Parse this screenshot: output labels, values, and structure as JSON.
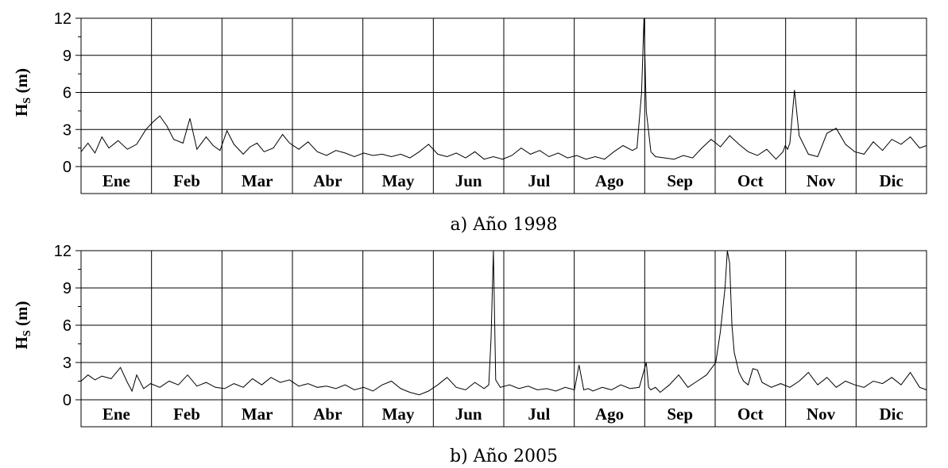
{
  "chart_data": [
    {
      "type": "line",
      "caption": "a) Año 1998",
      "ylabel_main": "H",
      "ylabel_sub": "S",
      "ylabel_unit": " (m)",
      "ylim": [
        0,
        12
      ],
      "yticks": [
        "0",
        "3",
        "6",
        "9",
        "12"
      ],
      "yminor": [
        1.5,
        4.5,
        7.5,
        10.5
      ],
      "grid": true,
      "categories": [
        "Ene",
        "Feb",
        "Mar",
        "Abr",
        "May",
        "Jun",
        "Jul",
        "Ago",
        "Sep",
        "Oct",
        "Nov",
        "Dic"
      ],
      "series": [
        {
          "x": [
            0,
            3,
            6,
            9,
            12,
            16,
            20,
            24,
            28,
            31,
            34,
            37,
            40,
            44,
            47,
            50,
            54,
            57,
            60,
            63,
            66,
            70,
            73,
            76,
            79,
            83,
            87,
            90,
            94,
            98,
            102,
            106,
            110,
            114,
            118,
            122,
            126,
            130,
            134,
            138,
            142,
            146,
            150,
            154,
            158,
            162,
            166,
            170,
            174,
            178,
            182,
            186,
            190,
            194,
            198,
            202,
            206,
            210,
            214,
            218,
            222,
            226,
            230,
            234,
            238,
            240,
            242,
            243,
            244,
            246,
            248,
            252,
            256,
            260,
            264,
            268,
            272,
            276,
            280,
            284,
            288,
            292,
            296,
            300,
            303,
            304,
            305,
            306,
            308,
            310,
            314,
            318,
            322,
            326,
            330,
            334,
            338,
            342,
            346,
            350,
            354,
            358,
            362,
            365
          ],
          "y": [
            1.2,
            1.9,
            1.1,
            2.4,
            1.5,
            2.1,
            1.4,
            1.8,
            3.0,
            3.6,
            4.1,
            3.3,
            2.2,
            1.9,
            3.9,
            1.4,
            2.4,
            1.7,
            1.3,
            2.9,
            1.8,
            1.0,
            1.6,
            1.9,
            1.2,
            1.5,
            2.6,
            1.9,
            1.4,
            2.0,
            1.2,
            0.9,
            1.3,
            1.1,
            0.8,
            1.1,
            0.9,
            1.0,
            0.8,
            1.0,
            0.7,
            1.2,
            1.8,
            1.0,
            0.8,
            1.1,
            0.7,
            1.2,
            0.6,
            0.8,
            0.6,
            0.9,
            1.5,
            1.0,
            1.3,
            0.8,
            1.1,
            0.7,
            0.9,
            0.6,
            0.8,
            0.6,
            1.2,
            1.7,
            1.3,
            1.5,
            6.0,
            12.0,
            4.5,
            1.2,
            0.8,
            0.7,
            0.6,
            0.9,
            0.7,
            1.5,
            2.2,
            1.6,
            2.5,
            1.8,
            1.2,
            0.9,
            1.4,
            0.6,
            1.2,
            1.7,
            1.4,
            1.9,
            6.2,
            2.5,
            1.0,
            0.8,
            2.7,
            3.1,
            1.8,
            1.2,
            1.0,
            2.0,
            1.3,
            2.2,
            1.8,
            2.4,
            1.5,
            1.7
          ]
        }
      ]
    },
    {
      "type": "line",
      "caption": "b) Año 2005",
      "ylabel_main": "H",
      "ylabel_sub": "S",
      "ylabel_unit": " (m)",
      "ylim": [
        0,
        12
      ],
      "yticks": [
        "0",
        "3",
        "6",
        "9",
        "12"
      ],
      "yminor": [
        1.5,
        4.5,
        7.5,
        10.5
      ],
      "grid": true,
      "categories": [
        "Ene",
        "Feb",
        "Mar",
        "Abr",
        "May",
        "Jun",
        "Jul",
        "Ago",
        "Sep",
        "Oct",
        "Nov",
        "Dic"
      ],
      "series": [
        {
          "x": [
            0,
            3,
            6,
            9,
            13,
            17,
            20,
            22,
            24,
            27,
            30,
            34,
            38,
            42,
            46,
            50,
            54,
            58,
            62,
            66,
            70,
            74,
            78,
            82,
            86,
            90,
            94,
            98,
            102,
            106,
            110,
            114,
            118,
            122,
            126,
            130,
            134,
            138,
            142,
            146,
            150,
            154,
            158,
            162,
            166,
            170,
            174,
            176,
            177,
            178,
            179,
            181,
            185,
            189,
            193,
            197,
            201,
            205,
            209,
            213,
            215,
            217,
            219,
            221,
            225,
            229,
            233,
            237,
            241,
            244,
            245,
            246,
            248,
            250,
            254,
            258,
            262,
            266,
            270,
            274,
            276,
            278,
            279,
            280,
            281,
            282,
            283,
            284,
            286,
            288,
            290,
            292,
            294,
            298,
            302,
            306,
            310,
            314,
            318,
            322,
            326,
            330,
            334,
            338,
            342,
            346,
            350,
            354,
            358,
            362,
            365
          ],
          "y": [
            1.5,
            2.0,
            1.6,
            1.9,
            1.7,
            2.6,
            1.4,
            0.7,
            2.0,
            0.9,
            1.3,
            1.0,
            1.5,
            1.2,
            2.0,
            1.1,
            1.4,
            1.0,
            0.9,
            1.3,
            1.0,
            1.7,
            1.2,
            1.8,
            1.4,
            1.6,
            1.1,
            1.3,
            1.0,
            1.1,
            0.9,
            1.2,
            0.8,
            1.0,
            0.7,
            1.2,
            1.5,
            0.9,
            0.6,
            0.4,
            0.7,
            1.2,
            1.8,
            1.0,
            0.8,
            1.4,
            0.9,
            1.2,
            5.0,
            12.2,
            1.6,
            1.0,
            1.2,
            0.9,
            1.1,
            0.8,
            0.9,
            0.7,
            1.0,
            0.8,
            2.8,
            0.8,
            0.9,
            0.7,
            1.0,
            0.8,
            1.2,
            0.9,
            1.0,
            3.0,
            1.0,
            0.8,
            1.0,
            0.6,
            1.2,
            2.0,
            1.0,
            1.5,
            2.0,
            3.0,
            5.5,
            9.0,
            12.8,
            11.0,
            6.0,
            3.8,
            3.0,
            2.2,
            1.5,
            1.2,
            2.5,
            2.4,
            1.4,
            1.0,
            1.3,
            1.0,
            1.5,
            2.2,
            1.2,
            1.8,
            1.0,
            1.5,
            1.2,
            1.0,
            1.5,
            1.3,
            1.8,
            1.2,
            2.2,
            1.0,
            0.8
          ]
        }
      ]
    }
  ]
}
